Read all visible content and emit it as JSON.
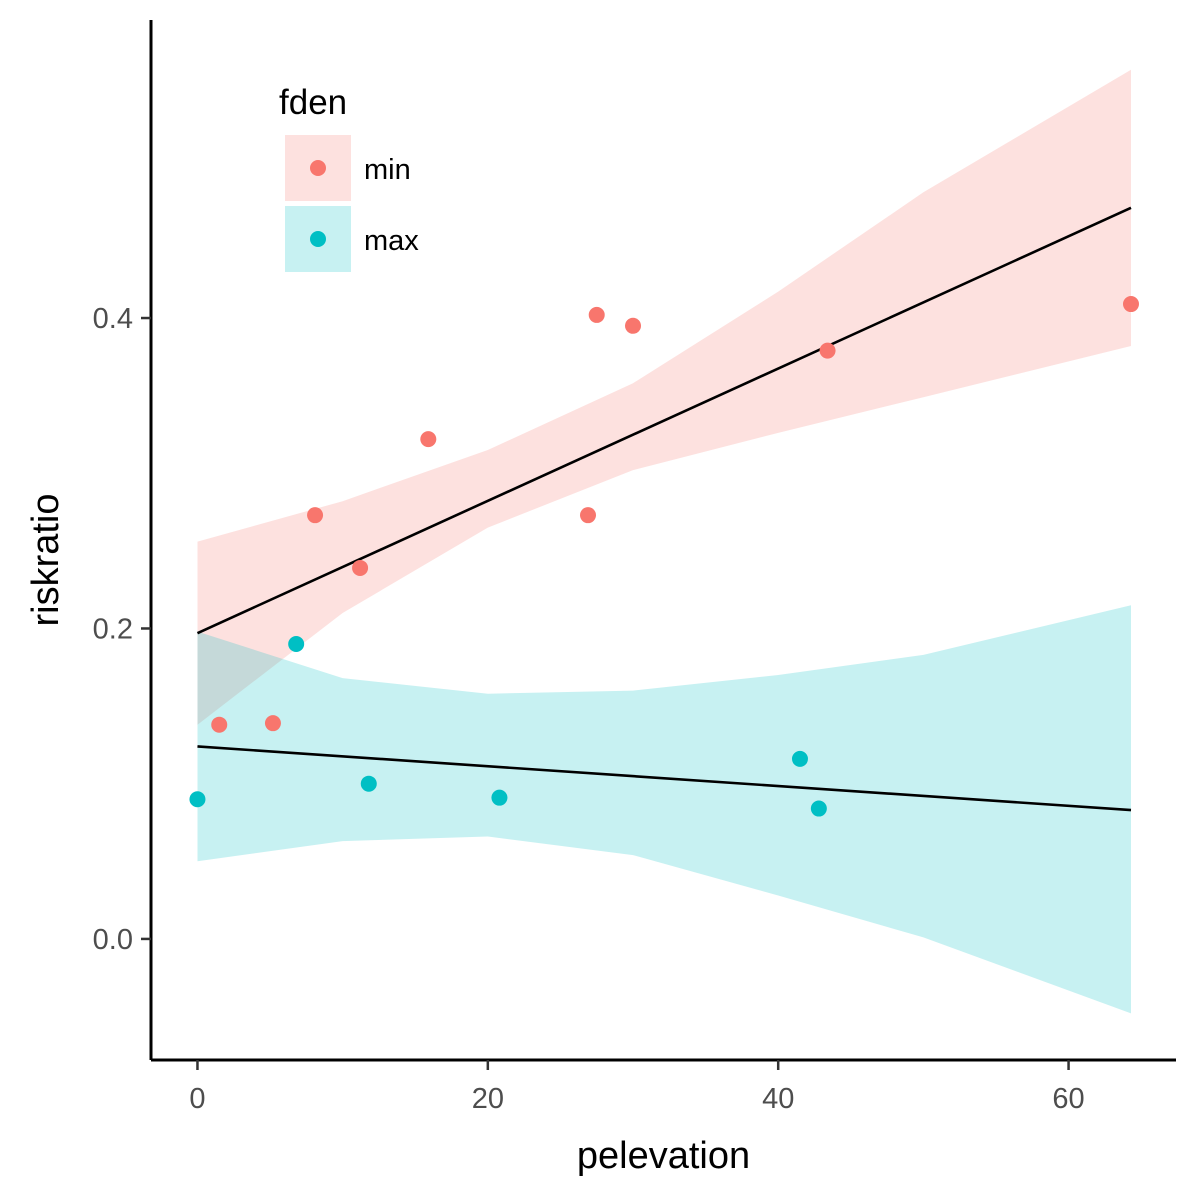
{
  "chart_data": {
    "type": "scatter",
    "xlabel": "pelevation",
    "ylabel": "riskratio",
    "xlim": [
      -3.2,
      67.4
    ],
    "ylim": [
      -0.078,
      0.592
    ],
    "x_ticks": [
      0,
      20,
      40,
      60
    ],
    "x_tick_labels": [
      "0",
      "20",
      "40",
      "60"
    ],
    "y_ticks": [
      0.0,
      0.2,
      0.4
    ],
    "y_tick_labels": [
      "0.0",
      "0.2",
      "0.4"
    ],
    "grid": false,
    "legend": {
      "title": "fden",
      "placement": "top-left",
      "entries": [
        "min",
        "max"
      ]
    },
    "series": [
      {
        "name": "min",
        "color": "#F8766D",
        "ribbon_color": "#F8766D",
        "points": [
          {
            "x": 1.5,
            "y": 0.138
          },
          {
            "x": 5.2,
            "y": 0.139
          },
          {
            "x": 8.1,
            "y": 0.273
          },
          {
            "x": 11.2,
            "y": 0.239
          },
          {
            "x": 15.9,
            "y": 0.322
          },
          {
            "x": 26.9,
            "y": 0.273
          },
          {
            "x": 27.5,
            "y": 0.402
          },
          {
            "x": 30.0,
            "y": 0.395
          },
          {
            "x": 43.4,
            "y": 0.379
          },
          {
            "x": 64.3,
            "y": 0.409
          }
        ],
        "fit": {
          "x": [
            0,
            64.3
          ],
          "y": [
            0.197,
            0.471
          ]
        },
        "ribbon": {
          "x": [
            0,
            10,
            20,
            30,
            40,
            50,
            64.3
          ],
          "lower": [
            0.138,
            0.21,
            0.265,
            0.302,
            0.326,
            0.349,
            0.382
          ],
          "upper": [
            0.256,
            0.282,
            0.315,
            0.358,
            0.417,
            0.481,
            0.56
          ]
        }
      },
      {
        "name": "max",
        "color": "#00BFC4",
        "ribbon_color": "#00BFC4",
        "points": [
          {
            "x": 0.0,
            "y": 0.09
          },
          {
            "x": 6.8,
            "y": 0.19
          },
          {
            "x": 11.8,
            "y": 0.1
          },
          {
            "x": 20.8,
            "y": 0.091
          },
          {
            "x": 41.5,
            "y": 0.116
          },
          {
            "x": 42.8,
            "y": 0.084
          }
        ],
        "fit": {
          "x": [
            0,
            64.3
          ],
          "y": [
            0.124,
            0.083
          ]
        },
        "ribbon": {
          "x": [
            0,
            10,
            20,
            30,
            40,
            50,
            64.3
          ],
          "lower": [
            0.05,
            0.063,
            0.066,
            0.054,
            0.028,
            0.001,
            -0.048
          ],
          "upper": [
            0.198,
            0.168,
            0.158,
            0.16,
            0.17,
            0.183,
            0.215
          ]
        }
      }
    ]
  }
}
